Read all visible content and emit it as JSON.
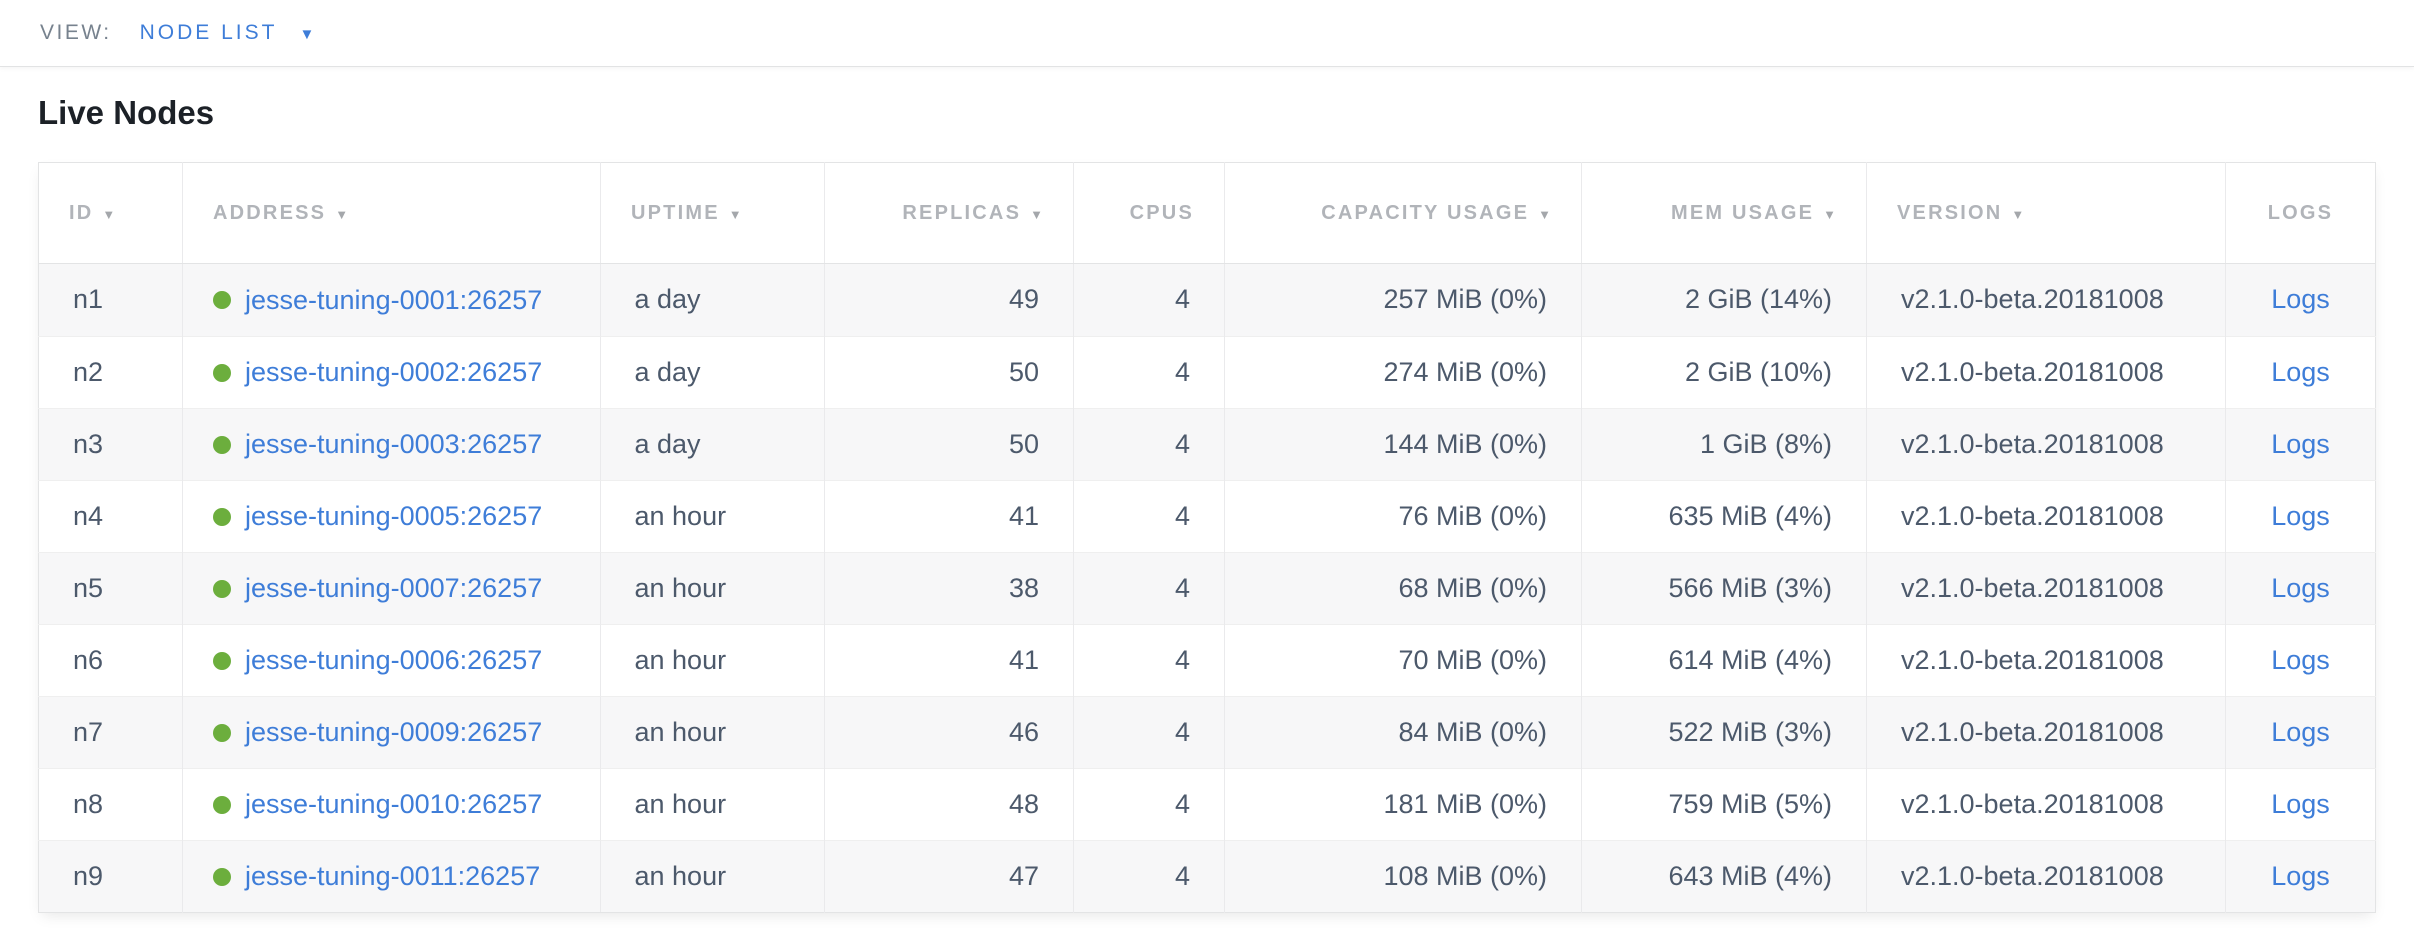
{
  "view_bar": {
    "label": "VIEW:",
    "selected_view": "NODE LIST"
  },
  "page": {
    "title": "Live Nodes"
  },
  "table": {
    "columns": [
      {
        "label": "ID",
        "sortable": true
      },
      {
        "label": "ADDRESS",
        "sortable": true
      },
      {
        "label": "UPTIME",
        "sortable": true
      },
      {
        "label": "REPLICAS",
        "sortable": true
      },
      {
        "label": "CPUS",
        "sortable": false
      },
      {
        "label": "CAPACITY USAGE",
        "sortable": true
      },
      {
        "label": "MEM USAGE",
        "sortable": true
      },
      {
        "label": "VERSION",
        "sortable": true
      },
      {
        "label": "LOGS",
        "sortable": false
      }
    ],
    "rows": [
      {
        "id": "n1",
        "status": "live",
        "address": "jesse-tuning-0001:26257",
        "uptime": "a day",
        "replicas": "49",
        "cpus": "4",
        "capacity_usage": "257 MiB (0%)",
        "mem_usage": "2 GiB (14%)",
        "version": "v2.1.0-beta.20181008",
        "logs_label": "Logs"
      },
      {
        "id": "n2",
        "status": "live",
        "address": "jesse-tuning-0002:26257",
        "uptime": "a day",
        "replicas": "50",
        "cpus": "4",
        "capacity_usage": "274 MiB (0%)",
        "mem_usage": "2 GiB (10%)",
        "version": "v2.1.0-beta.20181008",
        "logs_label": "Logs"
      },
      {
        "id": "n3",
        "status": "live",
        "address": "jesse-tuning-0003:26257",
        "uptime": "a day",
        "replicas": "50",
        "cpus": "4",
        "capacity_usage": "144 MiB (0%)",
        "mem_usage": "1 GiB (8%)",
        "version": "v2.1.0-beta.20181008",
        "logs_label": "Logs"
      },
      {
        "id": "n4",
        "status": "live",
        "address": "jesse-tuning-0005:26257",
        "uptime": "an hour",
        "replicas": "41",
        "cpus": "4",
        "capacity_usage": "76 MiB (0%)",
        "mem_usage": "635 MiB (4%)",
        "version": "v2.1.0-beta.20181008",
        "logs_label": "Logs"
      },
      {
        "id": "n5",
        "status": "live",
        "address": "jesse-tuning-0007:26257",
        "uptime": "an hour",
        "replicas": "38",
        "cpus": "4",
        "capacity_usage": "68 MiB (0%)",
        "mem_usage": "566 MiB (3%)",
        "version": "v2.1.0-beta.20181008",
        "logs_label": "Logs"
      },
      {
        "id": "n6",
        "status": "live",
        "address": "jesse-tuning-0006:26257",
        "uptime": "an hour",
        "replicas": "41",
        "cpus": "4",
        "capacity_usage": "70 MiB (0%)",
        "mem_usage": "614 MiB (4%)",
        "version": "v2.1.0-beta.20181008",
        "logs_label": "Logs"
      },
      {
        "id": "n7",
        "status": "live",
        "address": "jesse-tuning-0009:26257",
        "uptime": "an hour",
        "replicas": "46",
        "cpus": "4",
        "capacity_usage": "84 MiB (0%)",
        "mem_usage": "522 MiB (3%)",
        "version": "v2.1.0-beta.20181008",
        "logs_label": "Logs"
      },
      {
        "id": "n8",
        "status": "live",
        "address": "jesse-tuning-0010:26257",
        "uptime": "an hour",
        "replicas": "48",
        "cpus": "4",
        "capacity_usage": "181 MiB (0%)",
        "mem_usage": "759 MiB (5%)",
        "version": "v2.1.0-beta.20181008",
        "logs_label": "Logs"
      },
      {
        "id": "n9",
        "status": "live",
        "address": "jesse-tuning-0011:26257",
        "uptime": "an hour",
        "replicas": "47",
        "cpus": "4",
        "capacity_usage": "108 MiB (0%)",
        "mem_usage": "643 MiB (4%)",
        "version": "v2.1.0-beta.20181008",
        "logs_label": "Logs"
      }
    ]
  },
  "icons": {
    "sort_arrow": "▼",
    "view_caret": "▼"
  },
  "colors": {
    "accent_blue": "#3e7dd8",
    "status_green_live": "#6cae3d",
    "header_text": "#b1b4b9",
    "cell_text": "#4c596b",
    "row_stripe": "#f7f7f8"
  }
}
